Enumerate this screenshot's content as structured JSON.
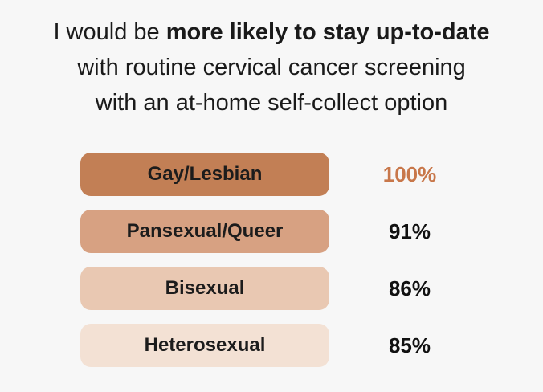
{
  "title": {
    "line1_pre": "I would be ",
    "line1_bold": "more likely to stay up-to-date",
    "line2": "with routine cervical cancer screening",
    "line3": "with an at-home self-collect option"
  },
  "chart_data": {
    "type": "table",
    "categories": [
      "Gay/Lesbian",
      "Pansexual/Queer",
      "Bisexual",
      "Heterosexual"
    ],
    "values": [
      100,
      91,
      86,
      85
    ],
    "value_labels": [
      "100%",
      "91%",
      "86%",
      "85%"
    ],
    "colors": [
      "#c27f55",
      "#d7a182",
      "#e9c8b2",
      "#f3e1d4"
    ],
    "highlight_color": "#c8774a"
  }
}
